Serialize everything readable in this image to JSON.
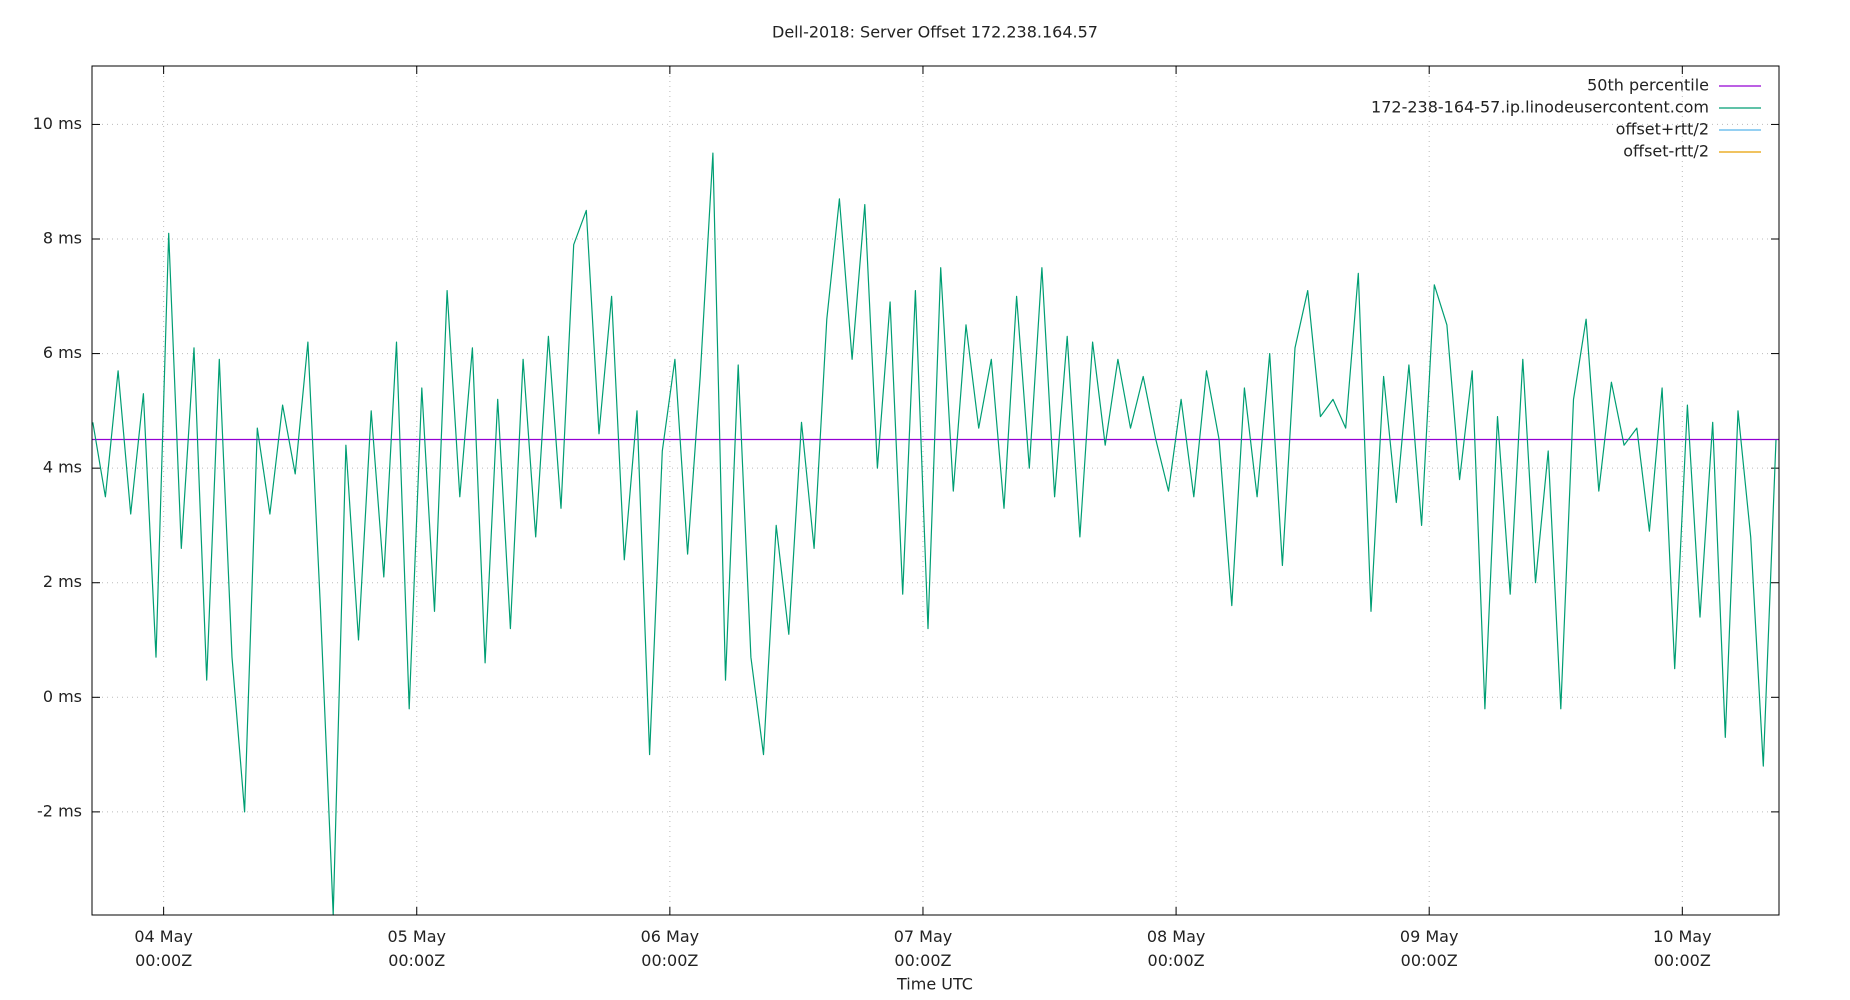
{
  "chart_data": {
    "type": "line",
    "title": "Dell-2018: Server Offset 172.238.164.57",
    "x_label": "Time UTC",
    "xlim": [
      3.717,
      10.382
    ],
    "ylim": [
      -3.8,
      11.02
    ],
    "grid": true,
    "legend": "top-right",
    "xticks": [
      {
        "value": 4,
        "label": "04 May\n00:00Z"
      },
      {
        "value": 5,
        "label": "05 May\n00:00Z"
      },
      {
        "value": 6,
        "label": "06 May\n00:00Z"
      },
      {
        "value": 7,
        "label": "07 May\n00:00Z"
      },
      {
        "value": 8,
        "label": "08 May\n00:00Z"
      },
      {
        "value": 9,
        "label": "09 May\n00:00Z"
      },
      {
        "value": 10,
        "label": "10 May\n00:00Z"
      }
    ],
    "yticks": [
      {
        "value": -2,
        "label": "-2 ms"
      },
      {
        "value": 0,
        "label": "0 ms"
      },
      {
        "value": 2,
        "label": "2 ms"
      },
      {
        "value": 4,
        "label": "4 ms"
      },
      {
        "value": 6,
        "label": "6 ms"
      },
      {
        "value": 8,
        "label": "8 ms"
      },
      {
        "value": 10,
        "label": "10 ms"
      }
    ],
    "x": [
      3.72,
      3.77,
      3.82,
      3.87,
      3.92,
      3.97,
      4.02,
      4.07,
      4.12,
      4.17,
      4.22,
      4.27,
      4.32,
      4.37,
      4.42,
      4.47,
      4.52,
      4.57,
      4.62,
      4.67,
      4.72,
      4.77,
      4.82,
      4.87,
      4.92,
      4.97,
      5.02,
      5.07,
      5.12,
      5.17,
      5.22,
      5.27,
      5.32,
      5.37,
      5.42,
      5.47,
      5.52,
      5.57,
      5.62,
      5.67,
      5.72,
      5.77,
      5.82,
      5.87,
      5.92,
      5.97,
      6.02,
      6.07,
      6.12,
      6.17,
      6.22,
      6.27,
      6.32,
      6.37,
      6.42,
      6.47,
      6.52,
      6.57,
      6.62,
      6.67,
      6.72,
      6.77,
      6.82,
      6.87,
      6.92,
      6.97,
      7.02,
      7.07,
      7.12,
      7.17,
      7.22,
      7.27,
      7.32,
      7.37,
      7.42,
      7.47,
      7.52,
      7.57,
      7.62,
      7.67,
      7.72,
      7.77,
      7.82,
      7.87,
      7.92,
      7.97,
      8.02,
      8.07,
      8.12,
      8.17,
      8.22,
      8.27,
      8.32,
      8.37,
      8.42,
      8.47,
      8.52,
      8.57,
      8.62,
      8.67,
      8.72,
      8.77,
      8.82,
      8.87,
      8.92,
      8.97,
      9.02,
      9.07,
      9.12,
      9.17,
      9.22,
      9.27,
      9.32,
      9.37,
      9.42,
      9.47,
      9.52,
      9.57,
      9.62,
      9.67,
      9.72,
      9.77,
      9.82,
      9.87,
      9.92,
      9.97,
      10.02,
      10.07,
      10.12,
      10.17,
      10.22,
      10.27,
      10.32,
      10.37
    ],
    "series": [
      {
        "name": "50th percentile",
        "color": "#9400d3",
        "level": 4.5
      },
      {
        "name": "172-238-164-57.ip.linodeusercontent.com",
        "color": "#009e73",
        "values": [
          4.8,
          3.5,
          5.7,
          3.2,
          5.3,
          0.7,
          8.1,
          2.6,
          6.1,
          0.3,
          5.9,
          0.7,
          -2.0,
          4.7,
          3.2,
          5.1,
          3.9,
          6.2,
          1.5,
          -3.8,
          4.4,
          1.0,
          5.0,
          2.1,
          6.2,
          -0.2,
          5.4,
          1.5,
          7.1,
          3.5,
          6.1,
          0.6,
          5.2,
          1.2,
          5.9,
          2.8,
          6.3,
          3.3,
          7.9,
          8.5,
          4.6,
          7.0,
          2.4,
          5.0,
          -1.0,
          4.3,
          5.9,
          2.5,
          5.6,
          9.5,
          0.3,
          5.8,
          0.7,
          -1.0,
          3.0,
          1.1,
          4.8,
          2.6,
          6.6,
          8.7,
          5.9,
          8.6,
          4.0,
          6.9,
          1.8,
          7.1,
          1.2,
          7.5,
          3.6,
          6.5,
          4.7,
          5.9,
          3.3,
          7.0,
          4.0,
          7.5,
          3.5,
          6.3,
          2.8,
          6.2,
          4.4,
          5.9,
          4.7,
          5.6,
          4.5,
          3.6,
          5.2,
          3.5,
          5.7,
          4.5,
          1.6,
          5.4,
          3.5,
          6.0,
          2.3,
          6.1,
          7.1,
          4.9,
          5.2,
          4.7,
          7.4,
          1.5,
          5.6,
          3.4,
          5.8,
          3.0,
          7.2,
          6.5,
          3.8,
          5.7,
          -0.2,
          4.9,
          1.8,
          5.9,
          2.0,
          4.3,
          -0.2,
          5.2,
          6.6,
          3.6,
          5.5,
          4.4,
          4.7,
          2.9,
          5.4,
          0.5,
          5.1,
          1.4,
          4.8,
          -0.7,
          5.0,
          2.8,
          -1.2,
          4.5
        ]
      },
      {
        "name": "offset+rtt/2",
        "color": "#56b4e9"
      },
      {
        "name": "offset-rtt/2",
        "color": "#e69f00"
      }
    ]
  }
}
